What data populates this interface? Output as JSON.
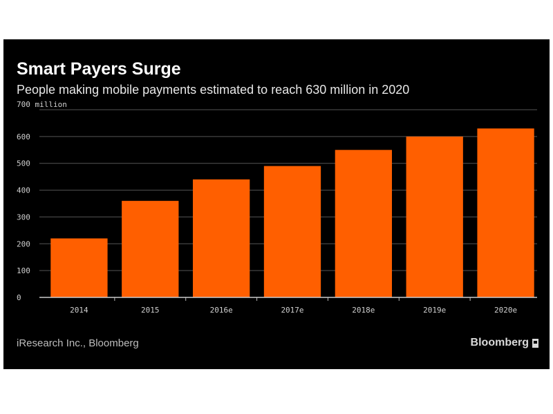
{
  "chart_data": {
    "type": "bar",
    "title": "Smart Payers Surge",
    "subtitle": "People making mobile payments estimated to reach 630 million in 2020",
    "y_unit_label": "700 million",
    "categories": [
      "2014",
      "2015",
      "2016e",
      "2017e",
      "2018e",
      "2019e",
      "2020e"
    ],
    "values": [
      220,
      360,
      440,
      490,
      550,
      600,
      630
    ],
    "ylim": [
      0,
      700
    ],
    "yticks": [
      0,
      100,
      200,
      300,
      400,
      500,
      600
    ],
    "grid": true,
    "bar_color": "#ff5f00",
    "grid_color": "#555555",
    "background_color": "#000000"
  },
  "footer": {
    "source": "iResearch Inc., Bloomberg",
    "brand": "Bloomberg"
  }
}
